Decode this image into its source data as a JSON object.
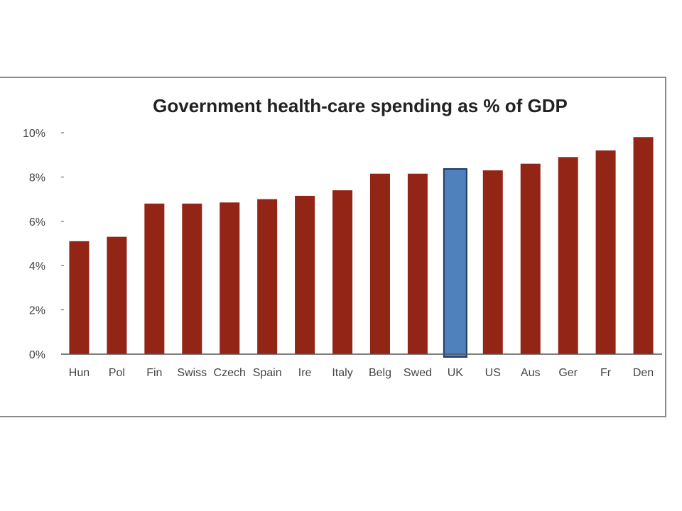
{
  "colors": {
    "bar": "#922516",
    "highlight": "#4f81bd",
    "highlight_border": "#1f3864",
    "axis": "#555555"
  },
  "chart_data": {
    "type": "bar",
    "title": "Government health-care spending as % of GDP",
    "xlabel": "",
    "ylabel": "",
    "ylim": [
      0,
      10
    ],
    "yticks": [
      {
        "value": 0,
        "label": "0%"
      },
      {
        "value": 2,
        "label": "2%"
      },
      {
        "value": 4,
        "label": "4%"
      },
      {
        "value": 6,
        "label": "6%"
      },
      {
        "value": 8,
        "label": "8%"
      },
      {
        "value": 10,
        "label": "10%"
      }
    ],
    "categories": [
      "Hun",
      "Pol",
      "Fin",
      "Swiss",
      "Czech",
      "Spain",
      "Ire",
      "Italy",
      "Belg",
      "Swed",
      "UK",
      "US",
      "Aus",
      "Ger",
      "Fr",
      "Den"
    ],
    "values": [
      5.1,
      5.3,
      6.8,
      6.8,
      6.85,
      7.0,
      7.15,
      7.4,
      8.15,
      8.15,
      8.3,
      8.3,
      8.6,
      8.9,
      9.2,
      9.8
    ],
    "highlight": "UK",
    "grid": false,
    "legend": "none"
  }
}
